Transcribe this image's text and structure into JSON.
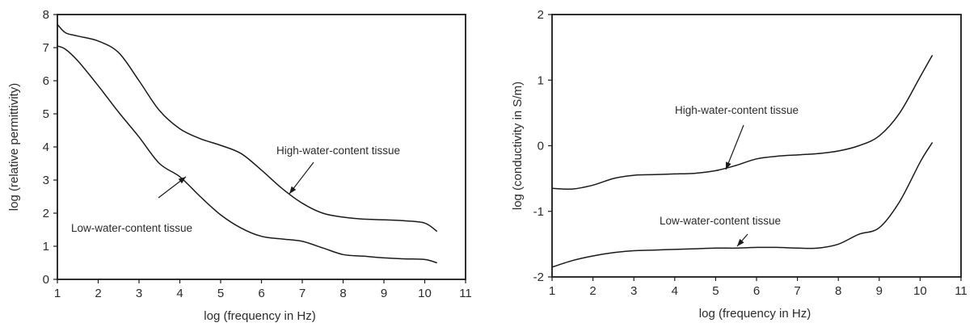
{
  "chart_data": [
    {
      "type": "line",
      "title": "",
      "xlabel": "log (frequency in Hz)",
      "ylabel": "log (relative permittivity)",
      "xlim": [
        1,
        11
      ],
      "ylim": [
        0,
        8
      ],
      "xticks": [
        "1",
        "2",
        "3",
        "4",
        "5",
        "6",
        "7",
        "8",
        "9",
        "10",
        "11"
      ],
      "yticks": [
        "0",
        "1",
        "2",
        "3",
        "4",
        "5",
        "6",
        "7",
        "8"
      ],
      "grid": false,
      "series": [
        {
          "name": "High-water-content tissue",
          "x": [
            1.0,
            1.2,
            1.5,
            2.0,
            2.5,
            3.0,
            3.5,
            4.0,
            4.5,
            5.0,
            5.5,
            6.0,
            6.5,
            7.0,
            7.5,
            8.0,
            8.5,
            9.0,
            9.5,
            10.0,
            10.3
          ],
          "y": [
            7.7,
            7.45,
            7.35,
            7.2,
            6.85,
            6.0,
            5.1,
            4.55,
            4.25,
            4.05,
            3.8,
            3.3,
            2.75,
            2.3,
            2.0,
            1.88,
            1.82,
            1.8,
            1.77,
            1.7,
            1.45
          ]
        },
        {
          "name": "Low-water-content tissue",
          "x": [
            1.0,
            1.2,
            1.5,
            2.0,
            2.5,
            3.0,
            3.5,
            4.0,
            4.5,
            5.0,
            5.5,
            6.0,
            6.5,
            7.0,
            7.5,
            8.0,
            8.5,
            9.0,
            9.5,
            10.0,
            10.3
          ],
          "y": [
            7.05,
            6.95,
            6.6,
            5.85,
            5.05,
            4.3,
            3.5,
            3.1,
            2.5,
            1.95,
            1.55,
            1.3,
            1.22,
            1.15,
            0.95,
            0.75,
            0.7,
            0.65,
            0.62,
            0.6,
            0.5
          ]
        }
      ],
      "annotations": [
        "High-water-content tissue",
        "Low-water-content tissue"
      ]
    },
    {
      "type": "line",
      "title": "",
      "xlabel": "log (frequency in Hz)",
      "ylabel": "log (conductivity in S/m)",
      "xlim": [
        1,
        11
      ],
      "ylim": [
        -2,
        2
      ],
      "xticks": [
        "1",
        "2",
        "3",
        "4",
        "5",
        "6",
        "7",
        "8",
        "9",
        "10",
        "11"
      ],
      "yticks": [
        "-2",
        "-1",
        "0",
        "1",
        "2"
      ],
      "grid": false,
      "series": [
        {
          "name": "High-water-content tissue",
          "x": [
            1.0,
            1.5,
            2.0,
            2.5,
            3.0,
            3.5,
            4.0,
            4.5,
            5.0,
            5.5,
            6.0,
            6.5,
            7.0,
            7.5,
            8.0,
            8.5,
            9.0,
            9.5,
            10.0,
            10.3
          ],
          "y": [
            -0.65,
            -0.66,
            -0.6,
            -0.5,
            -0.45,
            -0.44,
            -0.43,
            -0.42,
            -0.38,
            -0.3,
            -0.2,
            -0.16,
            -0.14,
            -0.12,
            -0.08,
            0.0,
            0.15,
            0.5,
            1.05,
            1.38
          ]
        },
        {
          "name": "Low-water-content tissue",
          "x": [
            1.0,
            1.5,
            2.0,
            2.5,
            3.0,
            3.5,
            4.0,
            4.5,
            5.0,
            5.5,
            6.0,
            6.5,
            7.0,
            7.5,
            8.0,
            8.5,
            9.0,
            9.5,
            10.0,
            10.3
          ],
          "y": [
            -1.85,
            -1.75,
            -1.68,
            -1.63,
            -1.6,
            -1.59,
            -1.58,
            -1.57,
            -1.56,
            -1.56,
            -1.55,
            -1.55,
            -1.56,
            -1.56,
            -1.5,
            -1.35,
            -1.25,
            -0.85,
            -0.25,
            0.05
          ]
        }
      ],
      "annotations": [
        "High-water-content tissue",
        "Low-water-content tissue"
      ]
    }
  ]
}
